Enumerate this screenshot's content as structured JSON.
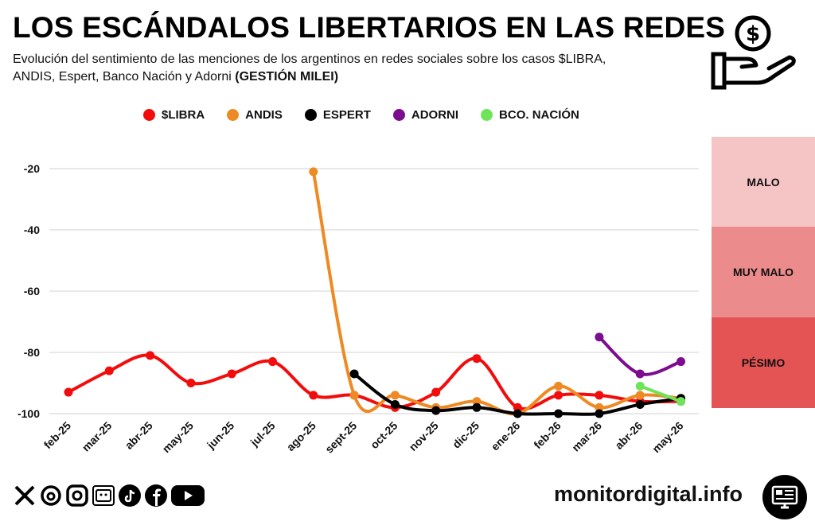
{
  "header": {
    "title": "LOS ESCÁNDALOS LIBERTARIOS EN LAS REDES",
    "subtitle_line1": "Evolución del sentimiento de las menciones de los argentinos en redes sociales sobre los casos $LIBRA,",
    "subtitle_line2_plain": "ANDIS, Espert, Banco Nación y Adorni ",
    "subtitle_line2_bold": "(GESTIÓN MILEI)"
  },
  "legend": [
    {
      "label": "$LIBRA",
      "color": "#f20c0c"
    },
    {
      "label": "ANDIS",
      "color": "#ee8a23"
    },
    {
      "label": "ESPERT",
      "color": "#000000"
    },
    {
      "label": "ADORNI",
      "color": "#7b0d8e"
    },
    {
      "label": "BCO. NACIÓN",
      "color": "#6fe45a"
    }
  ],
  "zones": [
    {
      "label": "MALO",
      "color": "#f5c4c4"
    },
    {
      "label": "MUY MALO",
      "color": "#ec8b8b"
    },
    {
      "label": "PÉSIMO",
      "color": "#e45454"
    }
  ],
  "footer": {
    "site": "monitordigital.info",
    "social_icons": [
      "x-icon",
      "threads-icon",
      "instagram-icon",
      "tv-icon",
      "tiktok-icon",
      "facebook-icon",
      "youtube-icon"
    ]
  },
  "chart_data": {
    "type": "line",
    "categories": [
      "feb-25",
      "mar-25",
      "abr-25",
      "may-25",
      "jun-25",
      "jul-25",
      "ago-25",
      "sept-25",
      "oct-25",
      "nov-25",
      "dic-25",
      "ene-26",
      "feb-26",
      "mar-26",
      "abr-26",
      "may-26"
    ],
    "yticks": [
      -20,
      -40,
      -60,
      -80,
      -100
    ],
    "ylim": [
      -102,
      -10
    ],
    "grid": true,
    "legend_position": "top",
    "series": [
      {
        "name": "$LIBRA",
        "color": "#f20c0c",
        "values": [
          -93,
          -86,
          -81,
          -90,
          -87,
          -83,
          -94,
          -94,
          -98,
          -93,
          -82,
          -98,
          -94,
          -94,
          -96,
          -96
        ]
      },
      {
        "name": "ANDIS",
        "color": "#ee8a23",
        "values": [
          null,
          null,
          null,
          null,
          null,
          null,
          -21,
          -94,
          -94,
          -98,
          -96,
          -100,
          -91,
          -98,
          -94,
          -95
        ]
      },
      {
        "name": "ESPERT",
        "color": "#000000",
        "values": [
          null,
          null,
          null,
          null,
          null,
          null,
          null,
          -87,
          -97,
          -99,
          -98,
          -100,
          -100,
          -100,
          -97,
          -95
        ]
      },
      {
        "name": "ADORNI",
        "color": "#7b0d8e",
        "values": [
          null,
          null,
          null,
          null,
          null,
          null,
          null,
          null,
          null,
          null,
          null,
          null,
          null,
          -75,
          -87,
          -83
        ]
      },
      {
        "name": "BCO. NACIÓN",
        "color": "#6fe45a",
        "values": [
          null,
          null,
          null,
          null,
          null,
          null,
          null,
          null,
          null,
          null,
          null,
          null,
          null,
          null,
          -91,
          -96
        ]
      }
    ]
  }
}
